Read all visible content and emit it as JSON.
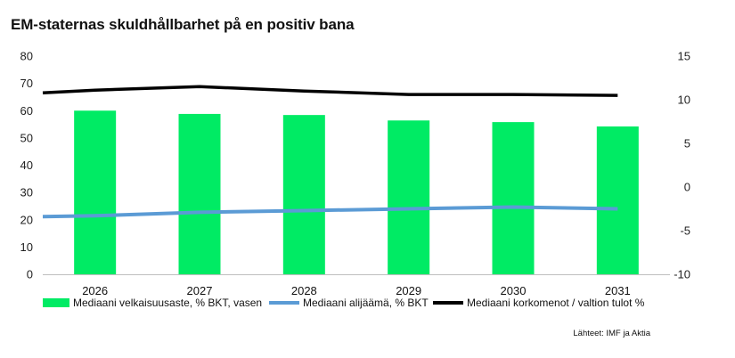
{
  "title": "EM-staternas skuldhållbarhet på en positiv bana",
  "source": "Lähteet: IMF ja Aktia",
  "colors": {
    "bars": "#00EB64",
    "deficit_line": "#5B9BD5",
    "interest_line": "#000000",
    "axis": "#BFBFBF"
  },
  "chart_data": {
    "type": "bar",
    "categories": [
      "2026",
      "2027",
      "2028",
      "2029",
      "2030",
      "2031"
    ],
    "y_left": {
      "min": 0,
      "max": 80,
      "ticks": [
        "0",
        "10",
        "20",
        "30",
        "40",
        "50",
        "60",
        "70",
        "80"
      ]
    },
    "y_right": {
      "min": -10,
      "max": 15,
      "ticks": [
        "-10",
        "-5",
        "0",
        "5",
        "10",
        "15"
      ]
    },
    "grid": false,
    "legend_position": "bottom",
    "series": [
      {
        "name": "Mediaani velkaisuusaste, % BKT, vasen",
        "type": "bar",
        "axis": "left",
        "values": [
          60,
          58.8,
          58.4,
          56.4,
          55.8,
          54.2
        ]
      },
      {
        "name": "Mediaani alijäämä, % BKT",
        "type": "line",
        "axis": "right",
        "x": [
          2025.5,
          2026,
          2027,
          2028,
          2029,
          2030,
          2031
        ],
        "values": [
          -3.4,
          -3.3,
          -2.9,
          -2.7,
          -2.5,
          -2.3,
          -2.5
        ]
      },
      {
        "name": "Mediaani korkomenot / valtion tulot %",
        "type": "line",
        "axis": "right",
        "x": [
          2025.5,
          2026,
          2027,
          2028,
          2029,
          2030,
          2031
        ],
        "values": [
          10.8,
          11.1,
          11.5,
          11.0,
          10.6,
          10.6,
          10.5
        ]
      }
    ]
  }
}
